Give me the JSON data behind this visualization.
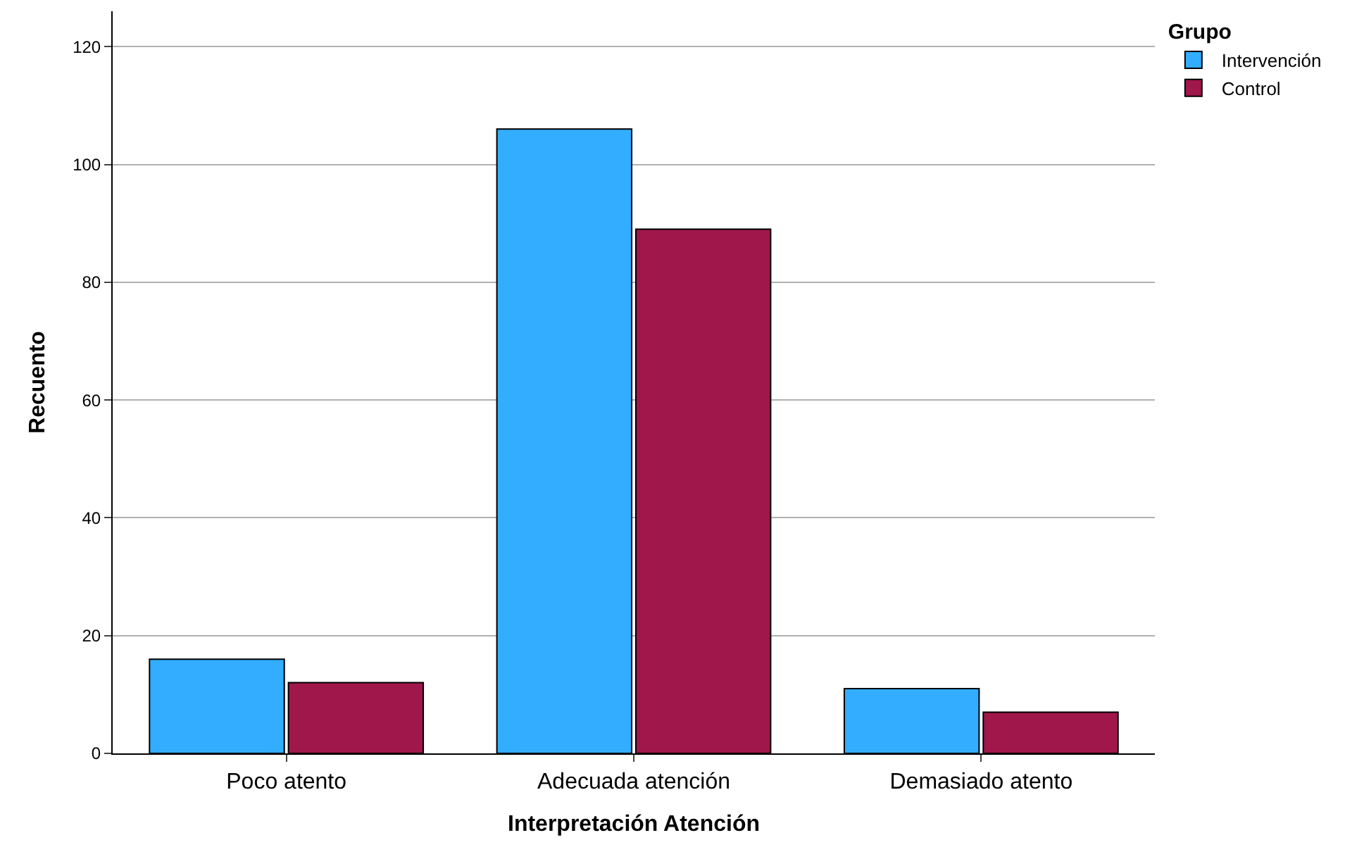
{
  "chart_data": {
    "type": "bar",
    "xlabel": "Interpretación Atención",
    "ylabel": "Recuento",
    "legend_title": "Grupo",
    "categories": [
      "Poco atento",
      "Adecuada atención",
      "Demasiado atento"
    ],
    "series": [
      {
        "name": "Intervención",
        "color": "#33adff",
        "values": [
          16,
          106,
          11
        ]
      },
      {
        "name": "Control",
        "color": "#a0174c",
        "values": [
          12,
          89,
          7
        ]
      }
    ],
    "ylim": [
      0,
      126
    ],
    "yticks": [
      0,
      20,
      40,
      60,
      80,
      100,
      120
    ],
    "grid": "y",
    "legend": "top right"
  }
}
